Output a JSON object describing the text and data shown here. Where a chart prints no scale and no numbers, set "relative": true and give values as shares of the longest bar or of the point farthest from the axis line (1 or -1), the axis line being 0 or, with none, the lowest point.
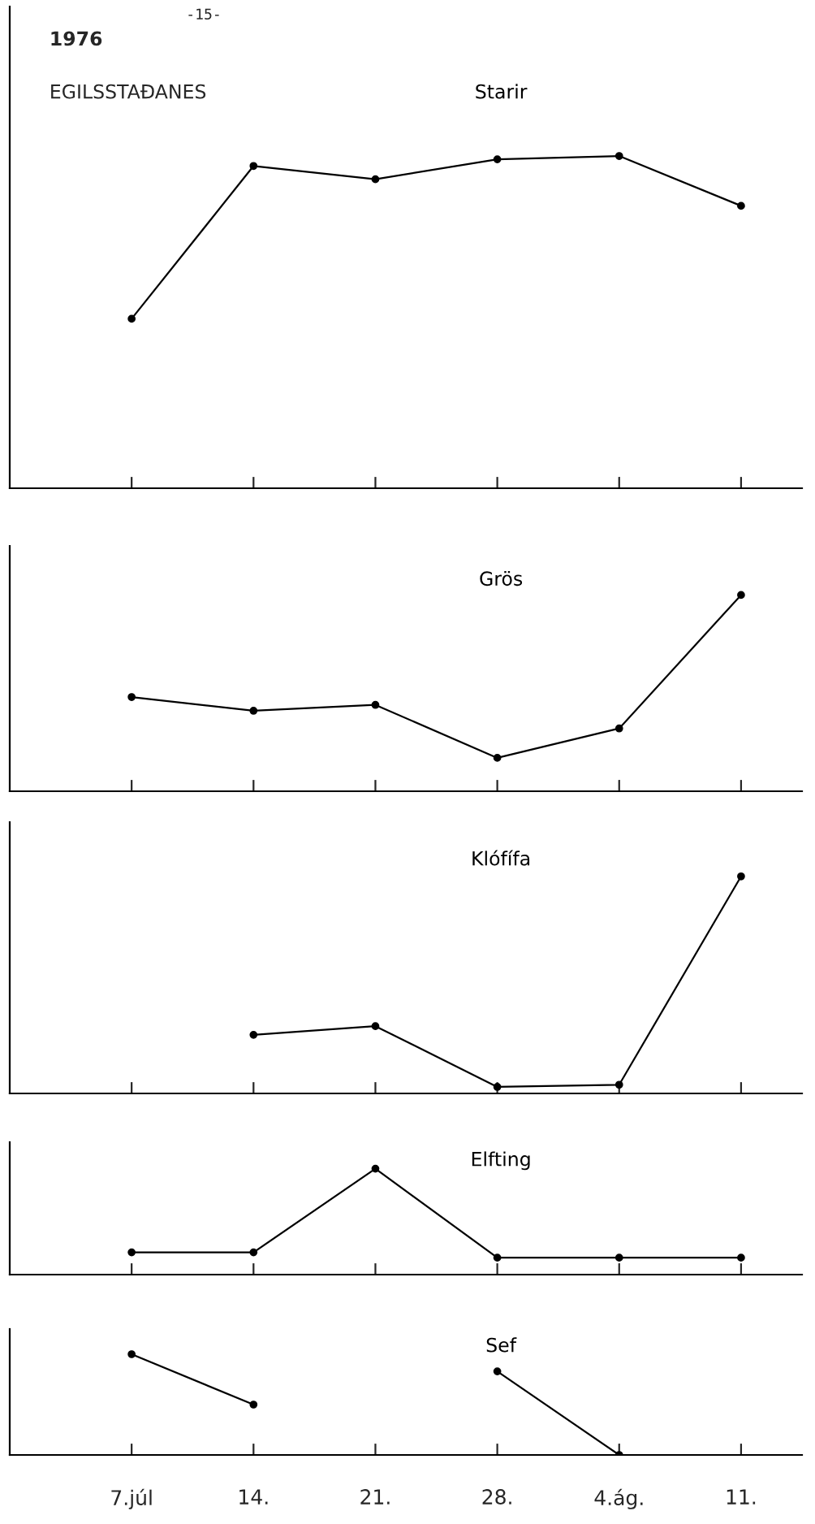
{
  "chart_data": [
    {
      "type": "line",
      "title": "1976",
      "subtitle": "EGILSSTAÐANES",
      "annotations": [
        "-15-"
      ],
      "relative": true,
      "categories": [
        null,
        null,
        null,
        null,
        null,
        null
      ],
      "tick_labels": false,
      "marker": "circle",
      "line_style": "solid",
      "series": [
        {
          "name": "Starir",
          "color": "#000000",
          "values": [
            0.51,
            0.97,
            0.93,
            0.99,
            1.0,
            0.85
          ]
        }
      ]
    },
    {
      "type": "line",
      "relative": true,
      "categories": [
        null,
        null,
        null,
        null,
        null,
        null
      ],
      "tick_labels": false,
      "marker": "circle",
      "line_style": "solid",
      "series": [
        {
          "name": "Grös",
          "color": "#000000",
          "values": [
            0.48,
            0.41,
            0.44,
            0.17,
            0.32,
            1.0
          ]
        }
      ]
    },
    {
      "type": "line",
      "relative": true,
      "categories": [
        null,
        null,
        null,
        null,
        null,
        null
      ],
      "tick_labels": false,
      "marker": "circle",
      "line_style": "solid",
      "series": [
        {
          "name": "Klófífa",
          "color": "#000000",
          "values": [
            null,
            0.27,
            0.31,
            0.03,
            0.04,
            1.0
          ]
        }
      ]
    },
    {
      "type": "line",
      "relative": true,
      "categories": [
        null,
        null,
        null,
        null,
        null,
        null
      ],
      "tick_labels": false,
      "marker": "circle",
      "line_style": "solid",
      "series": [
        {
          "name": "Elfting",
          "color": "#000000",
          "values": [
            0.21,
            0.21,
            1.0,
            0.16,
            0.16,
            0.16
          ]
        }
      ]
    },
    {
      "type": "line",
      "relative": true,
      "categories": [
        "7.júl",
        "14.",
        "21.",
        "28.",
        "4.ág.",
        "11."
      ],
      "tick_labels": "x",
      "marker": "circle",
      "line_style": "solid",
      "series": [
        {
          "name": "Sef",
          "color": "#000000",
          "values": [
            1.0,
            0.5,
            null,
            0.83,
            0.0,
            null
          ]
        }
      ]
    }
  ]
}
